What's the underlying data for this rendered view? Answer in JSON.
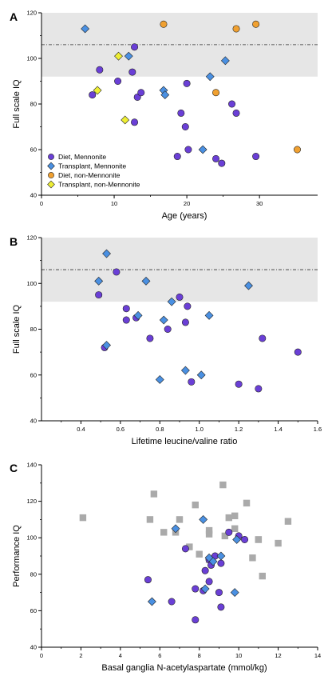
{
  "chart_data": [
    {
      "panel_label": "A",
      "type": "scatter",
      "xlabel": "Age (years)",
      "ylabel": "Full scale IQ",
      "xlim": [
        0,
        38
      ],
      "ylim": [
        40,
        120
      ],
      "xticks": [
        "0",
        "10",
        "20",
        "30"
      ],
      "yticks": [
        "40",
        "60",
        "80",
        "100",
        "120"
      ],
      "reference_band": [
        92,
        120
      ],
      "reference_line": 106,
      "legend_placement": "bottom-left",
      "series": [
        {
          "name": "Diet, Mennonite",
          "marker": "circle",
          "color": "#6A3FD6",
          "points": [
            [
              7,
              84
            ],
            [
              8,
              95
            ],
            [
              10.5,
              90
            ],
            [
              12.5,
              94
            ],
            [
              12.8,
              105
            ],
            [
              13.2,
              83
            ],
            [
              12.8,
              72
            ],
            [
              13.7,
              85
            ],
            [
              19.2,
              76
            ],
            [
              19.8,
              70
            ],
            [
              20,
              89
            ],
            [
              20.2,
              60
            ],
            [
              18.7,
              57
            ],
            [
              26.2,
              80
            ],
            [
              26.8,
              76
            ],
            [
              24,
              56
            ],
            [
              24.8,
              54
            ],
            [
              29.5,
              57
            ]
          ]
        },
        {
          "name": "Transplant, Mennonite",
          "marker": "diamond",
          "color": "#4A90E2",
          "points": [
            [
              6,
              113
            ],
            [
              12,
              101
            ],
            [
              16.8,
              86
            ],
            [
              17,
              84
            ],
            [
              22.2,
              60
            ],
            [
              23.2,
              92
            ],
            [
              25.3,
              99
            ]
          ]
        },
        {
          "name": "Diet, non-Mennonite",
          "marker": "circle",
          "color": "#F0A030",
          "points": [
            [
              16.8,
              115
            ],
            [
              26.8,
              113
            ],
            [
              29.5,
              115
            ],
            [
              24,
              85
            ],
            [
              35.2,
              60
            ]
          ]
        },
        {
          "name": "Transplant, non-Mennonite",
          "marker": "diamond",
          "color": "#EEEE33",
          "points": [
            [
              7.7,
              86
            ],
            [
              10.6,
              101
            ],
            [
              11.5,
              73
            ]
          ]
        }
      ]
    },
    {
      "panel_label": "B",
      "type": "scatter",
      "xlabel": "Lifetime leucine/valine ratio",
      "ylabel": "Full scale IQ",
      "xlim": [
        0.2,
        1.6
      ],
      "ylim": [
        40,
        120
      ],
      "xticks": [
        "0.4",
        "0.6",
        "0.8",
        "1.0",
        "1.2",
        "1.4",
        "1.6"
      ],
      "yticks": [
        "40",
        "60",
        "80",
        "100",
        "120"
      ],
      "reference_band": [
        92,
        120
      ],
      "reference_line": 106,
      "series": [
        {
          "name": "Diet, Mennonite",
          "marker": "circle",
          "color": "#6A3FD6",
          "points": [
            [
              0.49,
              95
            ],
            [
              0.52,
              72
            ],
            [
              0.58,
              105
            ],
            [
              0.63,
              89
            ],
            [
              0.63,
              84
            ],
            [
              0.68,
              85
            ],
            [
              0.75,
              76
            ],
            [
              0.84,
              80
            ],
            [
              0.9,
              94
            ],
            [
              0.93,
              83
            ],
            [
              0.94,
              90
            ],
            [
              0.96,
              57
            ],
            [
              1.2,
              56
            ],
            [
              1.3,
              54
            ],
            [
              1.32,
              76
            ],
            [
              1.5,
              70
            ]
          ]
        },
        {
          "name": "Transplant, Mennonite",
          "marker": "diamond",
          "color": "#4A90E2",
          "points": [
            [
              0.49,
              101
            ],
            [
              0.53,
              113
            ],
            [
              0.53,
              73
            ],
            [
              0.69,
              86
            ],
            [
              0.73,
              101
            ],
            [
              0.8,
              58
            ],
            [
              0.82,
              84
            ],
            [
              0.86,
              92
            ],
            [
              0.93,
              62
            ],
            [
              1.01,
              60
            ],
            [
              1.05,
              86
            ],
            [
              1.25,
              99
            ]
          ]
        }
      ]
    },
    {
      "panel_label": "C",
      "type": "scatter",
      "xlabel": "Basal ganglia N-acetylaspartate (mmol/kg)",
      "ylabel": "Performance IQ",
      "xlim": [
        0,
        14
      ],
      "ylim": [
        40,
        140
      ],
      "xticks": [
        "0",
        "2",
        "4",
        "6",
        "8",
        "10",
        "12",
        "14"
      ],
      "yticks": [
        "40",
        "60",
        "80",
        "100",
        "120",
        "140"
      ],
      "series": [
        {
          "name": "",
          "marker": "square",
          "color": "#AAAAAA",
          "points": [
            [
              2.1,
              111
            ],
            [
              5.5,
              110
            ],
            [
              5.7,
              124
            ],
            [
              6.2,
              103
            ],
            [
              6.8,
              103
            ],
            [
              7,
              110
            ],
            [
              7.5,
              95
            ],
            [
              7.8,
              118
            ],
            [
              8,
              91
            ],
            [
              8.5,
              104
            ],
            [
              8.5,
              102
            ],
            [
              8.5,
              88
            ],
            [
              9.2,
              129
            ],
            [
              9.3,
              101
            ],
            [
              9.5,
              111
            ],
            [
              9.8,
              112
            ],
            [
              9.8,
              105
            ],
            [
              10.4,
              119
            ],
            [
              10.7,
              89
            ],
            [
              11,
              99
            ],
            [
              11,
              99
            ],
            [
              11.2,
              79
            ],
            [
              12,
              97
            ],
            [
              12.5,
              109
            ]
          ]
        },
        {
          "name": "Diet, Mennonite",
          "marker": "circle",
          "color": "#6A3FD6",
          "points": [
            [
              5.4,
              77
            ],
            [
              6.6,
              65
            ],
            [
              7.3,
              94
            ],
            [
              7.8,
              72
            ],
            [
              7.8,
              55
            ],
            [
              8.2,
              71
            ],
            [
              8.3,
              82
            ],
            [
              8.5,
              88
            ],
            [
              8.5,
              76
            ],
            [
              8.6,
              85
            ],
            [
              8.8,
              90
            ],
            [
              9,
              70
            ],
            [
              9.1,
              86
            ],
            [
              9.1,
              62
            ],
            [
              9.5,
              103
            ],
            [
              10,
              101
            ],
            [
              10.3,
              99
            ]
          ]
        },
        {
          "name": "Transplant, Mennonite",
          "marker": "diamond",
          "color": "#4A90E2",
          "points": [
            [
              5.6,
              65
            ],
            [
              6.8,
              105
            ],
            [
              8.2,
              110
            ],
            [
              8.3,
              72
            ],
            [
              8.5,
              89
            ],
            [
              8.7,
              87
            ],
            [
              9.1,
              90
            ],
            [
              9.8,
              70
            ],
            [
              9.9,
              99
            ]
          ]
        }
      ]
    }
  ]
}
